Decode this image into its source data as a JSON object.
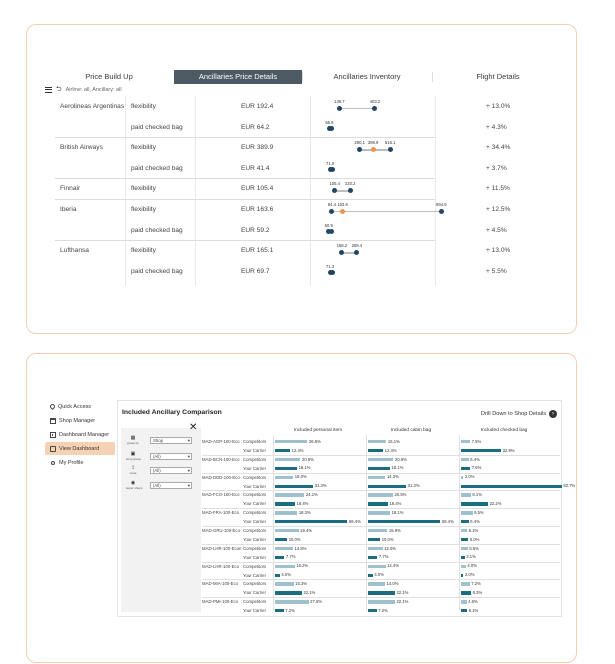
{
  "tabs": [
    "Price Build Up",
    "Ancillaries Price Details",
    "Ancillaries Inventory",
    "Flight Details"
  ],
  "active_tab": 1,
  "filter_text": "Airline: all, Ancillary: all",
  "price_rows": [
    {
      "airline": "Aerolineas Argentinas",
      "ancillary": "flexibility",
      "price": "EUR 192.4",
      "min": 139.7,
      "mid": null,
      "max": 403.2,
      "change": "+ 13.0%"
    },
    {
      "airline": "",
      "ancillary": "paid checked bag",
      "price": "EUR 64.2",
      "min": 65.9,
      "mid": null,
      "max": null,
      "change": "+ 4.3%"
    },
    {
      "airline": "British Airways",
      "ancillary": "flexibility",
      "price": "EUR 389.9",
      "min": 290.1,
      "mid": 389.9,
      "max": 516.1,
      "change": "+ 34.4%"
    },
    {
      "airline": "",
      "ancillary": "paid checked bag",
      "price": "EUR 41.4",
      "min": 71.0,
      "mid": null,
      "max": null,
      "change": "+ 3.7%"
    },
    {
      "airline": "Finnair",
      "ancillary": "flexibility",
      "price": "EUR 105.4",
      "min": 105.4,
      "mid": null,
      "max": 220.2,
      "change": "+ 11.5%"
    },
    {
      "airline": "Iberia",
      "ancillary": "flexibility",
      "price": "EUR 163.6",
      "min": 84.4,
      "mid": 163.6,
      "max": 894.9,
      "change": "+ 12.5%"
    },
    {
      "airline": "",
      "ancillary": "paid checked bag",
      "price": "EUR 59.2",
      "min": 60.9,
      "mid": null,
      "max": null,
      "change": "+ 4.5%"
    },
    {
      "airline": "Lufthansa",
      "ancillary": "flexibility",
      "price": "EUR 165.1",
      "min": 158.2,
      "mid": null,
      "max": 269.4,
      "change": "+ 13.0%"
    },
    {
      "airline": "",
      "ancillary": "paid checked bag",
      "price": "EUR 69.7",
      "min": 71.3,
      "mid": null,
      "max": null,
      "change": "+ 5.5%"
    }
  ],
  "sidebar": [
    {
      "label": "Quick Access",
      "icon": "pin-icon"
    },
    {
      "label": "Shop Manager",
      "icon": "shop-icon"
    },
    {
      "label": "Dashboard Manager",
      "icon": "dashboard-icon"
    },
    {
      "label": "View Dashboard",
      "icon": "view-dashboard-icon",
      "active": true
    },
    {
      "label": "My Profile",
      "icon": "user-icon"
    }
  ],
  "comparison": {
    "title": "Included Ancillary Comparison",
    "drill_label": "Drill Down to Shop Details",
    "filters": [
      {
        "icon_label": "group by",
        "value": "Shop"
      },
      {
        "icon_label": "shop group",
        "value": "(All)"
      },
      {
        "icon_label": "route",
        "value": "(All)"
      },
      {
        "icon_label": "super shops",
        "value": "(All)"
      }
    ],
    "columns": [
      "Included personal item",
      "Included cabin bag",
      "Included checked bag"
    ],
    "rows": [
      {
        "route": "MAD-AGP-100-Eco",
        "type": "Competitors",
        "values": [
          "26.6%",
          "15.1%",
          "7.5%"
        ],
        "nums": [
          26.6,
          15.1,
          7.5
        ]
      },
      {
        "route": "",
        "type": "Your Carrier",
        "values": [
          "12.4%",
          "12.4%",
          "32.9%"
        ],
        "nums": [
          12.4,
          12.4,
          32.9
        ]
      },
      {
        "route": "MAD-BCN-100-Eco",
        "type": "Competitors",
        "values": [
          "20.9%",
          "20.9%",
          "6.4%"
        ],
        "nums": [
          20.9,
          20.9,
          6.4
        ]
      },
      {
        "route": "",
        "type": "Your Carrier",
        "values": [
          "18.1%",
          "18.1%",
          "7.6%"
        ],
        "nums": [
          18.1,
          18.1,
          7.6
        ]
      },
      {
        "route": "MAD-DDD-100-Eco",
        "type": "Competitors",
        "values": [
          "15.0%",
          "14.3%",
          "2.0%"
        ],
        "nums": [
          15.0,
          14.3,
          2.0
        ]
      },
      {
        "route": "",
        "type": "Your Carrier",
        "values": [
          "31.3%",
          "31.3%",
          "82.7%"
        ],
        "nums": [
          31.3,
          31.3,
          82.7
        ]
      },
      {
        "route": "MAD-FCO-100-Eco",
        "type": "Competitors",
        "values": [
          "24.1%",
          "20.5%",
          "8.1%"
        ],
        "nums": [
          24.1,
          20.5,
          8.1
        ]
      },
      {
        "route": "",
        "type": "Your Carrier",
        "values": [
          "16.4%",
          "16.4%",
          "22.2%"
        ],
        "nums": [
          16.4,
          16.4,
          22.2
        ]
      },
      {
        "route": "MAD-FRA-100-Eco",
        "type": "Competitors",
        "values": [
          "18.3%",
          "18.1%",
          "9.5%"
        ],
        "nums": [
          18.3,
          18.1,
          9.5
        ]
      },
      {
        "route": "",
        "type": "Your Carrier",
        "values": [
          "59.4%",
          "59.4%",
          "6.4%"
        ],
        "nums": [
          59.4,
          59.4,
          6.4
        ]
      },
      {
        "route": "MAD-GRU-100-Eco",
        "type": "Competitors",
        "values": [
          "19.4%",
          "15.9%",
          "5.1%"
        ],
        "nums": [
          19.4,
          15.9,
          5.1
        ]
      },
      {
        "route": "",
        "type": "Your Carrier",
        "values": [
          "10.0%",
          "10.0%",
          "6.0%"
        ],
        "nums": [
          10.0,
          10.0,
          6.0
        ]
      },
      {
        "route": "MAD-LHR-100-Econ",
        "type": "Competitors",
        "values": [
          "14.8%",
          "12.0%",
          "5.6%"
        ],
        "nums": [
          14.8,
          12.0,
          5.6
        ]
      },
      {
        "route": "",
        "type": "Your Carrier",
        "values": [
          "7.7%",
          "7.7%",
          "3.1%"
        ],
        "nums": [
          7.7,
          7.7,
          3.1
        ]
      },
      {
        "route": "MAD-LHR-100-Eco",
        "type": "Competitors",
        "values": [
          "16.2%",
          "14.4%",
          "4.0%"
        ],
        "nums": [
          16.2,
          14.4,
          4.0
        ]
      },
      {
        "route": "",
        "type": "Your Carrier",
        "values": [
          "4.0%",
          "4.0%",
          "2.0%"
        ],
        "nums": [
          4.0,
          4.0,
          2.0
        ]
      },
      {
        "route": "MAD-MIA-100-Eco",
        "type": "Competitors",
        "values": [
          "15.3%",
          "14.0%",
          "7.2%"
        ],
        "nums": [
          15.3,
          14.0,
          7.2
        ]
      },
      {
        "route": "",
        "type": "Your Carrier",
        "values": [
          "22.1%",
          "22.1%",
          "8.3%"
        ],
        "nums": [
          22.1,
          22.1,
          8.3
        ]
      },
      {
        "route": "MAD-PMI-100-Eco",
        "type": "Competitors",
        "values": [
          "27.6%",
          "22.1%",
          "4.6%"
        ],
        "nums": [
          27.6,
          22.1,
          4.6
        ]
      },
      {
        "route": "",
        "type": "Your Carrier",
        "values": [
          "7.2%",
          "7.2%",
          "5.1%"
        ],
        "nums": [
          7.2,
          7.2,
          5.1
        ]
      }
    ]
  }
}
